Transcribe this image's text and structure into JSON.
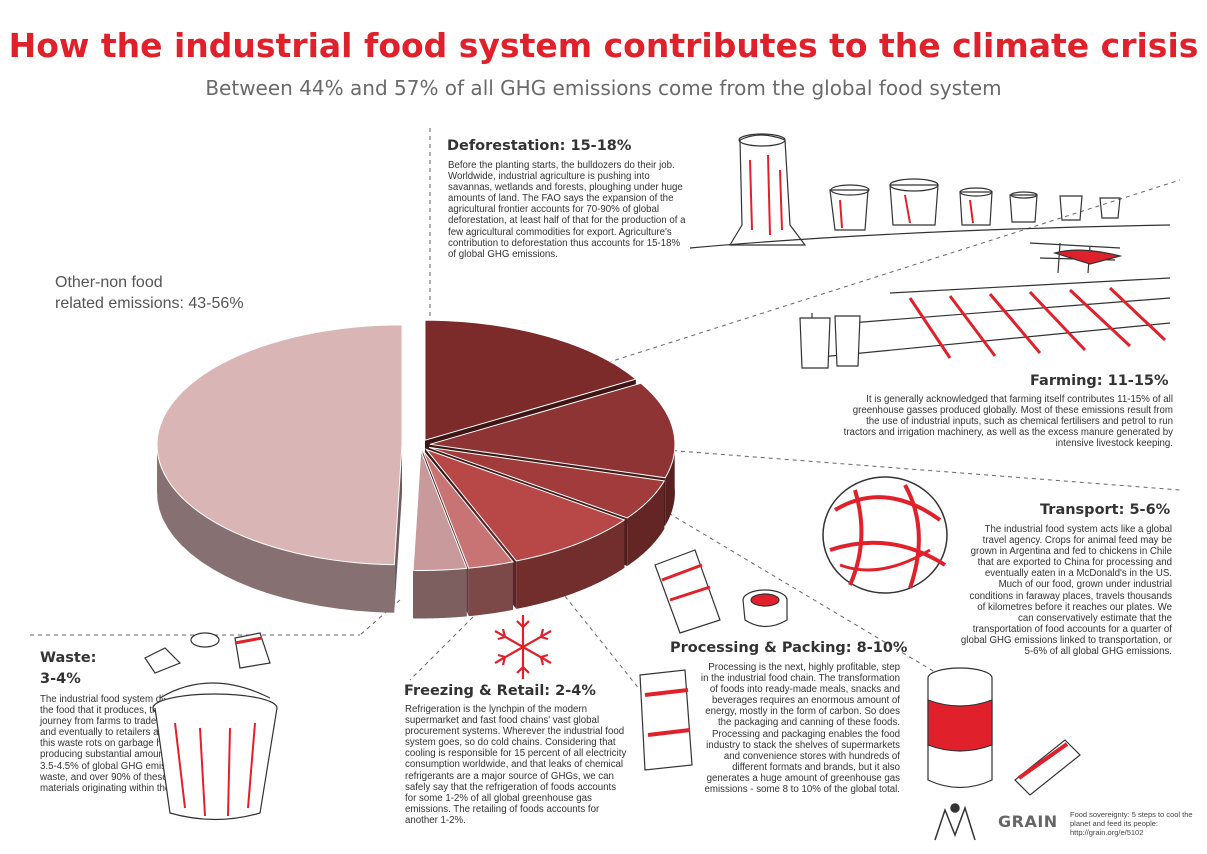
{
  "header": {
    "title": "How the industrial food system contributes to the climate crisis",
    "subtitle": "Between 44% and 57% of all GHG emissions come from the global food system"
  },
  "colors": {
    "title_red": "#e0212b",
    "other": "#d9b5b6",
    "deforestation": "#7c2a2a",
    "farming": "#8e3434",
    "transport": "#a23c3c",
    "processing": "#b84848",
    "freezing": "#c97474",
    "waste": "#c99a9b"
  },
  "chart_data": {
    "type": "pie",
    "style": "3d-exploded",
    "slices": [
      {
        "label": "Deforestation: 15-18%",
        "value": 16.5,
        "color": "#7c2a2a"
      },
      {
        "label": "Farming: 11-15%",
        "value": 13,
        "color": "#8e3434"
      },
      {
        "label": "Transport: 5-6%",
        "value": 5.5,
        "color": "#a23c3c"
      },
      {
        "label": "Processing & Packing: 8-10%",
        "value": 9,
        "color": "#b84848"
      },
      {
        "label": "Freezing & Retail: 2-4%",
        "value": 3,
        "color": "#c97474"
      },
      {
        "label": "Waste: 3-4%",
        "value": 3.5,
        "color": "#c99a9b"
      },
      {
        "label": "Other-non food related emissions: 43-56%",
        "value": 49.5,
        "color": "#d9b5b6"
      }
    ]
  },
  "labels": {
    "other_line1": "Other-non food",
    "other_line2": "related emissions: 43-56%"
  },
  "sections": {
    "deforestation": {
      "heading": "Deforestation: 15-18%",
      "body": "Before the planting starts, the bulldozers do their job. Worldwide, industrial agriculture is pushing into savannas, wetlands and forests, ploughing under huge amounts of land. The FAO says the expansion of the agricultural frontier accounts for 70-90% of global deforestation, at least half of that for the production of a few agricultural commodities for export. Agriculture's contribution to deforestation thus accounts for 15-18% of global GHG emissions."
    },
    "farming": {
      "heading": "Farming: 11-15%",
      "body": "It is generally acknowledged that farming itself contributes 11-15% of all greenhouse gasses produced globally. Most of these emissions result from the use of industrial inputs, such as chemical fertilisers and petrol to run tractors and irrigation machinery, as well as the excess manure generated by intensive livestock keeping."
    },
    "transport": {
      "heading": "Transport: 5-6%",
      "body": "The industrial food system acts like a global travel agency. Crops for animal feed may be grown in Argentina and fed to chickens in Chile that are exported to China for processing and eventually eaten in a McDonald's in the US. Much of our food, grown under industrial conditions in faraway places, travels thousands of kilometres before it reaches our plates. We can conservatively estimate that the transportation of food accounts for a quarter of global GHG emissions linked to transportation, or 5-6% of all global GHG emissions."
    },
    "processing": {
      "heading": "Processing & Packing: 8-10%",
      "body": "Processing is the next, highly profitable, step in the industrial food chain. The transformation of foods into ready-made meals, snacks and beverages requires an enormous amount of energy, mostly in the form of carbon. So does the packaging and canning of these foods. Processing and packaging enables the food industry to stack the shelves of supermarkets and convenience stores with hundreds of different formats and brands, but it also generates a huge amount of greenhouse gas emissions - some 8 to 10% of the global total."
    },
    "freezing": {
      "heading": "Freezing & Retail: 2-4%",
      "body": "Refrigeration is the lynchpin of the modern supermarket and fast food chains' vast global procurement systems. Wherever the industrial food system goes, so do cold chains. Considering that cooling is responsible for 15 percent of all electricity consumption worldwide, and that leaks of chemical refrigerants are a major source of GHGs, we can safely say that the refrigeration of foods accounts for some 1-2% of all global greenhouse gas emissions. The retailing of foods accounts for another 1-2%."
    },
    "waste": {
      "heading_line1": "Waste:",
      "heading_line2": "3-4%",
      "body": "The industrial food system discards up to half of all the food that it produces, thrown out on the long journey from farms to traders, to food processors, and eventually to retailers and restaurants. A lot of this waste rots on garbage heaps and landfills, producing substantial amounts of GHGs. Between 3.5-4.5% of global GHG emissions come from waste, and over 90% of these are produced by materials originating within the food system."
    }
  },
  "footer": {
    "logo": "GRAIN",
    "note": "Food sovereignty: 5 steps to cool the planet and feed its people: http://grain.org/e/5102"
  }
}
